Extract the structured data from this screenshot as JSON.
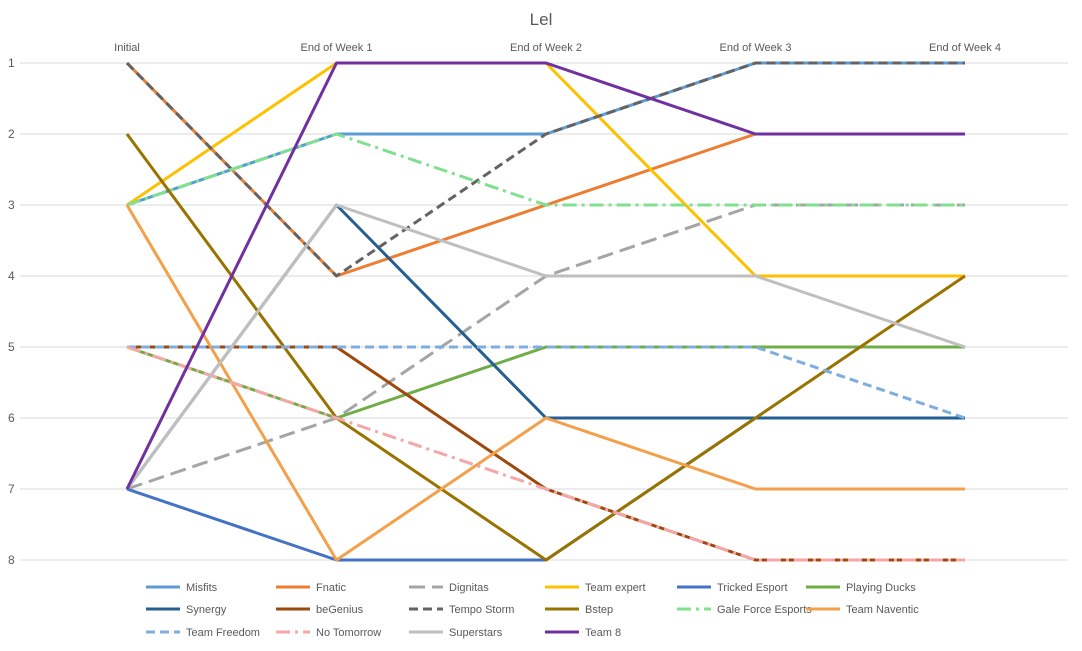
{
  "chart_data": {
    "type": "line",
    "title": "Lel",
    "categories": [
      "Initial",
      "End of Week 1",
      "End of Week 2",
      "End of Week 3",
      "End of Week 4"
    ],
    "ylim": [
      8,
      1
    ],
    "y_ticks": [
      1,
      2,
      3,
      4,
      5,
      6,
      7,
      8
    ],
    "y_reversed": true,
    "grid": true,
    "legend_position": "bottom",
    "series": [
      {
        "name": "Misfits",
        "values": [
          3,
          2,
          2,
          1,
          1
        ],
        "color": "#5B9BD5",
        "dash": "solid"
      },
      {
        "name": "Fnatic",
        "values": [
          1,
          4,
          3,
          2,
          2
        ],
        "color": "#ED7D31",
        "dash": "solid"
      },
      {
        "name": "Dignitas",
        "values": [
          7,
          6,
          4,
          3,
          3
        ],
        "color": "#A5A5A5",
        "dash": "longdash"
      },
      {
        "name": "Team expert",
        "values": [
          3,
          1,
          1,
          4,
          4
        ],
        "color": "#FFC000",
        "dash": "solid"
      },
      {
        "name": "Tricked Esport",
        "values": [
          7,
          8,
          8,
          6,
          6
        ],
        "color": "#4472C4",
        "dash": "solid"
      },
      {
        "name": "Playing Ducks",
        "values": [
          5,
          6,
          5,
          5,
          5
        ],
        "color": "#70AD47",
        "dash": "solid"
      },
      {
        "name": "Synergy",
        "values": [
          7,
          3,
          6,
          6,
          6
        ],
        "color": "#255E91",
        "dash": "solid"
      },
      {
        "name": "beGenius",
        "values": [
          5,
          5,
          7,
          8,
          8
        ],
        "color": "#9E480E",
        "dash": "solid"
      },
      {
        "name": "Tempo Storm",
        "values": [
          1,
          4,
          2,
          1,
          1
        ],
        "color": "#636363",
        "dash": "dash"
      },
      {
        "name": "Bstep",
        "values": [
          2,
          6,
          8,
          6,
          4
        ],
        "color": "#997300",
        "dash": "solid"
      },
      {
        "name": "Gale Force Esports",
        "values": [
          3,
          2,
          3,
          3,
          3
        ],
        "color": "#7FE08F",
        "dash": "dashdot"
      },
      {
        "name": "Team Naventic",
        "values": [
          3,
          8,
          6,
          7,
          7
        ],
        "color": "#F4A04A",
        "dash": "solid"
      },
      {
        "name": "Team Freedom",
        "values": [
          5,
          5,
          5,
          5,
          6
        ],
        "color": "#7DAEDF",
        "dash": "dash"
      },
      {
        "name": "No Tomorrow",
        "values": [
          5,
          6,
          7,
          8,
          8
        ],
        "color": "#F4A7A7",
        "dash": "dashdot"
      },
      {
        "name": "Superstars",
        "values": [
          7,
          3,
          4,
          4,
          5
        ],
        "color": "#BFBFBF",
        "dash": "solid"
      },
      {
        "name": "Team 8",
        "values": [
          7,
          1,
          1,
          2,
          2
        ],
        "color": "#7030A0",
        "dash": "solid"
      }
    ]
  }
}
